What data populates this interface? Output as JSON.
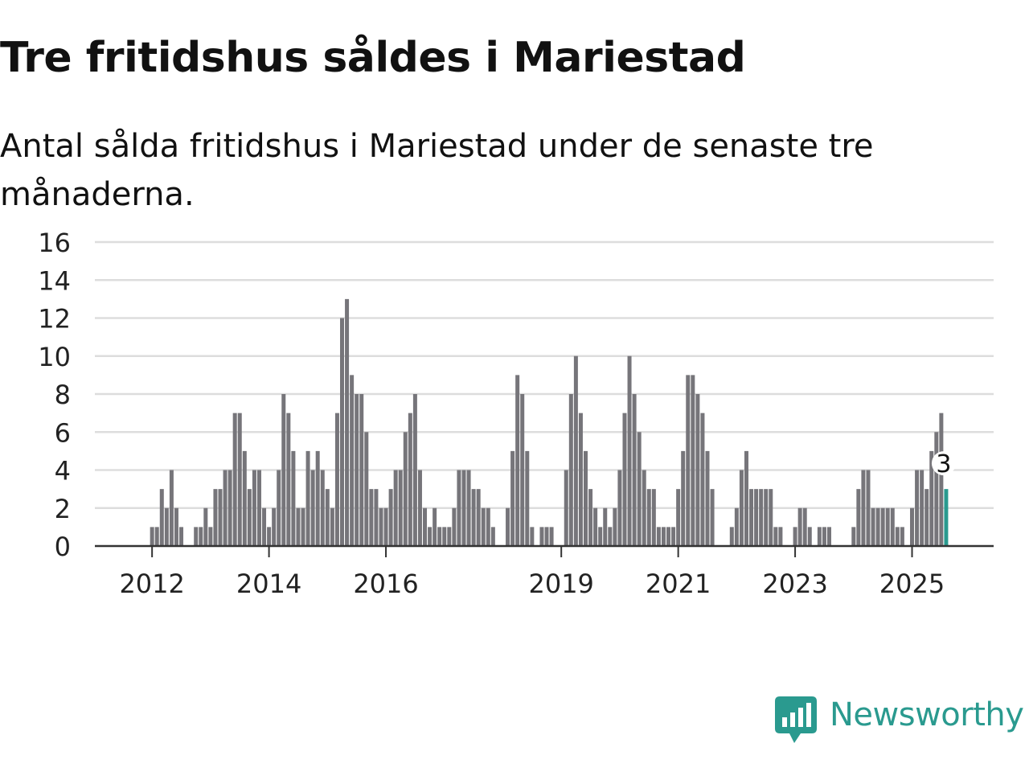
{
  "header": {
    "title": "Tre fritidshus såldes i Mariestad",
    "subtitle": "Antal sålda fritidshus i Mariestad under de senaste tre månaderna."
  },
  "brand": {
    "name": "Newsworthy",
    "color": "#2a9a8f"
  },
  "chart_data": {
    "type": "bar",
    "title": "Tre fritidshus såldes i Mariestad",
    "subtitle": "Antal sålda fritidshus i Mariestad under de senaste tre månaderna.",
    "xlabel": "",
    "ylabel": "",
    "ylim": [
      0,
      16
    ],
    "yticks": [
      "0",
      "2",
      "4",
      "6",
      "8",
      "10",
      "12",
      "14",
      "16"
    ],
    "xticks": [
      "2012",
      "2014",
      "2016",
      "2019",
      "2021",
      "2023",
      "2025"
    ],
    "grid": true,
    "bar_color": "#76757a",
    "highlight_color": "#2a9a8f",
    "highlight_label": "3",
    "start": "2011-02",
    "interval": "month",
    "values": [
      0,
      0,
      0,
      0,
      0,
      0,
      0,
      0,
      0,
      0,
      0,
      1,
      1,
      3,
      2,
      4,
      2,
      1,
      0,
      0,
      1,
      1,
      2,
      1,
      3,
      3,
      4,
      4,
      7,
      7,
      5,
      3,
      4,
      4,
      2,
      1,
      2,
      4,
      8,
      7,
      5,
      2,
      2,
      5,
      4,
      5,
      4,
      3,
      2,
      7,
      12,
      13,
      9,
      8,
      8,
      6,
      3,
      3,
      2,
      2,
      3,
      4,
      4,
      6,
      7,
      8,
      4,
      2,
      1,
      2,
      1,
      1,
      1,
      2,
      4,
      4,
      4,
      3,
      3,
      2,
      2,
      1,
      0,
      0,
      2,
      5,
      9,
      8,
      5,
      1,
      0,
      1,
      1,
      1,
      0,
      0,
      4,
      8,
      10,
      7,
      5,
      3,
      2,
      1,
      2,
      1,
      2,
      4,
      7,
      10,
      8,
      6,
      4,
      3,
      3,
      1,
      1,
      1,
      1,
      3,
      5,
      9,
      9,
      8,
      7,
      5,
      3,
      0,
      0,
      0,
      1,
      2,
      4,
      5,
      3,
      3,
      3,
      3,
      3,
      1,
      1,
      0,
      0,
      1,
      2,
      2,
      1,
      0,
      1,
      1,
      1,
      0,
      0,
      0,
      0,
      1,
      3,
      4,
      4,
      2,
      2,
      2,
      2,
      2,
      1,
      1,
      0,
      2,
      4,
      4,
      3,
      5,
      6,
      7,
      3
    ]
  }
}
